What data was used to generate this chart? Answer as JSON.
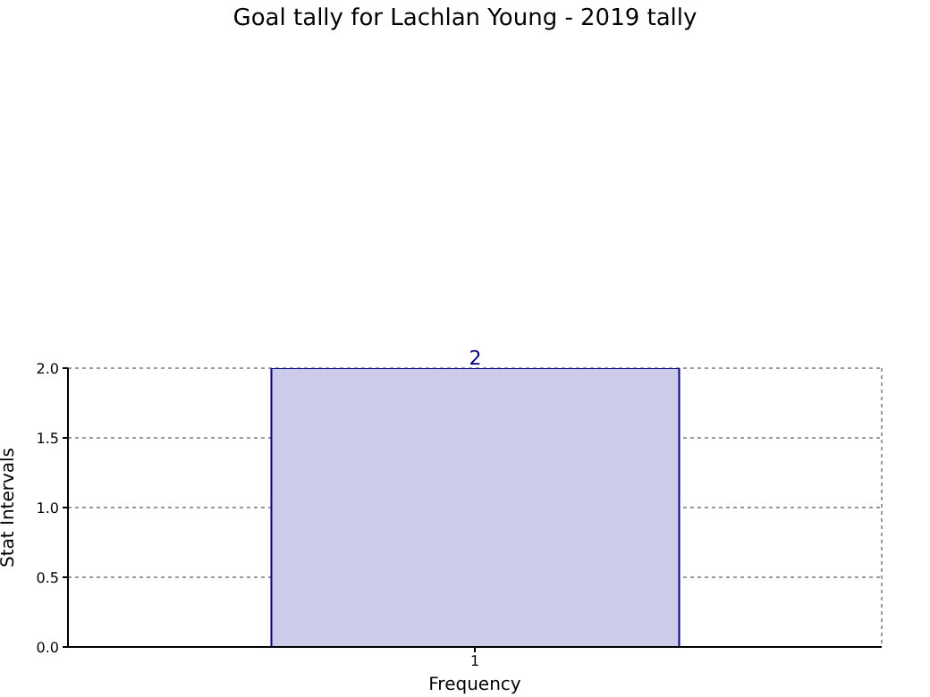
{
  "chart_data": {
    "type": "bar",
    "title": "Goal tally for Lachlan Young - 2019 tally",
    "xlabel": "Frequency",
    "ylabel": "Stat Intervals",
    "categories": [
      "1"
    ],
    "values": [
      2
    ],
    "color": "#ccccea",
    "data_labels": true,
    "ylim": [
      0,
      2
    ],
    "yticks": [
      {
        "value": 0,
        "label": "0.0"
      },
      {
        "value": 0.5,
        "label": "0.5"
      },
      {
        "value": 1,
        "label": "1.0"
      },
      {
        "value": 1.5,
        "label": "1.5"
      },
      {
        "value": 2,
        "label": "2.0"
      }
    ],
    "grid": true,
    "legend": false
  }
}
